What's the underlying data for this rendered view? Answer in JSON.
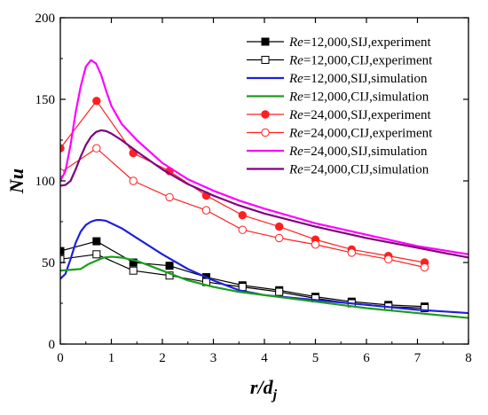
{
  "chart_data": {
    "type": "line",
    "xlabel": "r/dj",
    "ylabel": "Nu",
    "xlim": [
      0,
      8
    ],
    "ylim": [
      0,
      200
    ],
    "x_ticks": [
      0,
      1,
      2,
      3,
      4,
      5,
      6,
      7,
      8
    ],
    "y_ticks": [
      0,
      50,
      100,
      150,
      200
    ],
    "legend_position": "top-right",
    "grid": false,
    "series": [
      {
        "name": "Re=12,000,SIJ,experiment",
        "color": "#000000",
        "marker": "filled-square",
        "line": "solid",
        "x": [
          0,
          0.71,
          1.43,
          2.14,
          2.86,
          3.57,
          4.29,
          5.0,
          5.71,
          6.43,
          7.14
        ],
        "y": [
          57,
          63,
          50,
          48,
          41,
          36,
          33,
          29,
          26,
          24,
          23
        ]
      },
      {
        "name": "Re=12,000,CIJ,experiment",
        "color": "#000000",
        "marker": "open-square",
        "line": "solid",
        "x": [
          0,
          0.71,
          1.43,
          2.14,
          2.86,
          3.57,
          4.29,
          5.0,
          5.71,
          6.43,
          7.14
        ],
        "y": [
          52,
          55,
          45,
          42,
          38,
          35,
          32,
          28,
          25,
          23,
          22
        ]
      },
      {
        "name": "Re=12,000,SIJ,simulation",
        "color": "#1f1fe0",
        "marker": "none",
        "line": "solid",
        "x": [
          0,
          0.1,
          0.2,
          0.3,
          0.4,
          0.5,
          0.6,
          0.7,
          0.8,
          0.9,
          1.0,
          1.2,
          1.5,
          2.0,
          2.5,
          3.0,
          3.5,
          4.0,
          5.0,
          6.0,
          7.0,
          8.0
        ],
        "y": [
          40,
          43,
          52,
          62,
          69,
          73,
          75,
          76,
          76,
          75.5,
          74,
          71,
          65,
          55,
          46,
          39,
          33,
          30,
          27,
          24,
          21,
          19
        ]
      },
      {
        "name": "Re=12,000,CIJ,simulation",
        "color": "#1a9e1a",
        "marker": "none",
        "line": "solid",
        "x": [
          0,
          0.2,
          0.4,
          0.55,
          0.7,
          0.85,
          1.0,
          1.2,
          1.5,
          2.0,
          2.5,
          3.0,
          3.5,
          4.0,
          5.0,
          6.0,
          7.0,
          8.0
        ],
        "y": [
          45,
          45.5,
          46,
          49,
          51,
          53,
          53.5,
          53,
          51,
          45,
          39,
          35,
          32,
          30,
          26,
          22,
          19,
          16
        ]
      },
      {
        "name": "Re=24,000,SIJ,experiment",
        "color": "#ff2020",
        "marker": "filled-circle",
        "line": "solid",
        "x": [
          0,
          0.71,
          1.43,
          2.14,
          2.86,
          3.57,
          4.29,
          5.0,
          5.71,
          6.43,
          7.14
        ],
        "y": [
          120,
          149,
          117,
          106,
          91,
          79,
          72,
          64,
          58,
          54,
          50
        ]
      },
      {
        "name": "Re=24,000,CIJ,experiment",
        "color": "#ff2020",
        "marker": "open-circle",
        "line": "solid",
        "x": [
          0,
          0.71,
          1.43,
          2.14,
          2.86,
          3.57,
          4.29,
          5.0,
          5.71,
          6.43,
          7.14
        ],
        "y": [
          105,
          120,
          100,
          90,
          82,
          70,
          65,
          61,
          56,
          52,
          47
        ]
      },
      {
        "name": "Re=24,000,SIJ,simulation",
        "color": "#ff00ff",
        "marker": "none",
        "line": "solid",
        "x": [
          0,
          0.1,
          0.2,
          0.3,
          0.4,
          0.5,
          0.6,
          0.7,
          0.8,
          0.9,
          1.0,
          1.2,
          1.5,
          2.0,
          2.5,
          3.0,
          3.5,
          4.0,
          5.0,
          6.0,
          7.0,
          8.0
        ],
        "y": [
          100,
          106,
          122,
          142,
          158,
          170,
          174,
          172,
          165,
          155,
          146,
          135,
          125,
          111,
          101,
          94,
          88,
          83,
          74,
          67,
          60,
          55
        ]
      },
      {
        "name": "Re=24,000,CIJ,simulation",
        "color": "#800080",
        "marker": "none",
        "line": "solid",
        "x": [
          0,
          0.1,
          0.2,
          0.3,
          0.4,
          0.5,
          0.6,
          0.7,
          0.8,
          0.9,
          1.0,
          1.2,
          1.5,
          2.0,
          2.5,
          3.0,
          3.5,
          4.0,
          5.0,
          6.0,
          7.0,
          8.0
        ],
        "y": [
          97,
          97.5,
          100,
          107,
          115,
          122,
          127,
          130,
          131,
          130.5,
          129,
          125,
          118,
          107,
          98,
          91,
          85,
          80,
          72,
          65,
          59,
          53
        ]
      }
    ]
  }
}
